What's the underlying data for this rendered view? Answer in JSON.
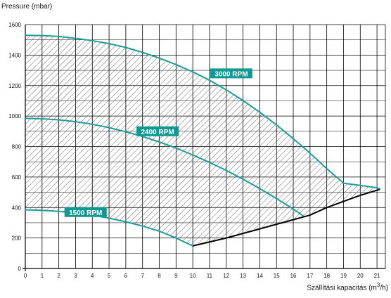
{
  "chart_data": {
    "type": "area",
    "ylabel": "Pressure (mbar)",
    "xlabel_prefix": "Szállítási kapacitás (m",
    "xlabel_sup": "3",
    "xlabel_suffix": "/h)",
    "xlim": [
      0,
      21.5
    ],
    "ylim": [
      0,
      1600
    ],
    "x_ticks": [
      0,
      1,
      2,
      3,
      4,
      5,
      6,
      7,
      8,
      9,
      10,
      11,
      12,
      13,
      14,
      15,
      16,
      17,
      18,
      19,
      20,
      21
    ],
    "y_ticks": [
      0,
      200,
      400,
      600,
      800,
      1000,
      1200,
      1400,
      1600
    ],
    "grid": true,
    "colors": {
      "curve": "#1f9e99",
      "label_bg": "#119893",
      "boundary": "#000000",
      "hatch": "#444444"
    },
    "series": [
      {
        "name": "3000 RPM",
        "label_at": [
          12.3,
          1280
        ],
        "x": [
          0,
          1,
          2,
          3,
          4,
          5,
          6,
          7,
          8,
          9,
          10,
          11,
          12,
          13,
          14,
          15,
          16,
          17,
          18,
          19,
          20,
          21,
          21.2
        ],
        "y": [
          1530,
          1528,
          1522,
          1510,
          1495,
          1475,
          1450,
          1418,
          1380,
          1338,
          1290,
          1235,
          1172,
          1102,
          1025,
          942,
          852,
          757,
          655,
          560,
          545,
          530,
          520
        ]
      },
      {
        "name": "2400 RPM",
        "label_at": [
          7.9,
          900
        ],
        "x": [
          0,
          1,
          2,
          3,
          4,
          5,
          6,
          7,
          8,
          9,
          10,
          11,
          12,
          13,
          14,
          15,
          16,
          16.6
        ],
        "y": [
          985,
          982,
          975,
          963,
          946,
          924,
          897,
          866,
          830,
          790,
          745,
          696,
          643,
          586,
          524,
          459,
          390,
          345
        ]
      },
      {
        "name": "1500 RPM",
        "label_at": [
          3.6,
          370
        ],
        "x": [
          0,
          1,
          2,
          3,
          4,
          5,
          6,
          7,
          8,
          9,
          10
        ],
        "y": [
          385,
          382,
          375,
          364,
          349,
          330,
          306,
          278,
          245,
          200,
          148
        ]
      }
    ],
    "boundary": {
      "x": [
        10,
        12,
        14,
        16,
        17,
        18,
        19,
        20,
        21.2
      ],
      "y": [
        148,
        200,
        260,
        320,
        350,
        400,
        440,
        480,
        520
      ]
    }
  }
}
